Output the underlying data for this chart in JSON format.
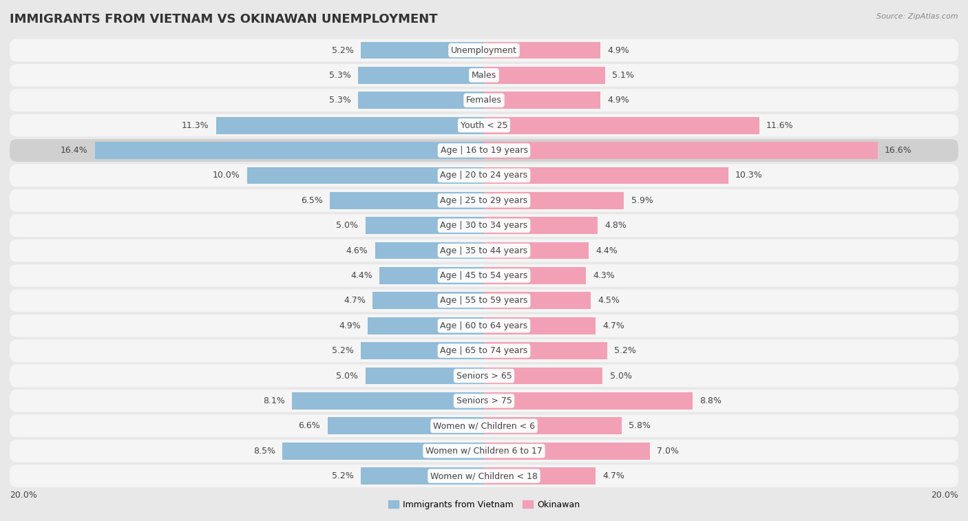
{
  "title": "IMMIGRANTS FROM VIETNAM VS OKINAWAN UNEMPLOYMENT",
  "source": "Source: ZipAtlas.com",
  "categories": [
    "Unemployment",
    "Males",
    "Females",
    "Youth < 25",
    "Age | 16 to 19 years",
    "Age | 20 to 24 years",
    "Age | 25 to 29 years",
    "Age | 30 to 34 years",
    "Age | 35 to 44 years",
    "Age | 45 to 54 years",
    "Age | 55 to 59 years",
    "Age | 60 to 64 years",
    "Age | 65 to 74 years",
    "Seniors > 65",
    "Seniors > 75",
    "Women w/ Children < 6",
    "Women w/ Children 6 to 17",
    "Women w/ Children < 18"
  ],
  "vietnam_values": [
    5.2,
    5.3,
    5.3,
    11.3,
    16.4,
    10.0,
    6.5,
    5.0,
    4.6,
    4.4,
    4.7,
    4.9,
    5.2,
    5.0,
    8.1,
    6.6,
    8.5,
    5.2
  ],
  "okinawan_values": [
    4.9,
    5.1,
    4.9,
    11.6,
    16.6,
    10.3,
    5.9,
    4.8,
    4.4,
    4.3,
    4.5,
    4.7,
    5.2,
    5.0,
    8.8,
    5.8,
    7.0,
    4.7
  ],
  "vietnam_color": "#92bcd8",
  "okinawan_color": "#f2a0b5",
  "bar_height": 0.68,
  "xlim": 20.0,
  "bg_color": "#e8e8e8",
  "row_bg": "#f5f5f5",
  "row_border": "#dddddd",
  "highlight_row": 4,
  "highlight_bg": "#d0d0d0",
  "value_fontsize": 9,
  "label_fontsize": 9,
  "title_fontsize": 13,
  "legend_fontsize": 9
}
